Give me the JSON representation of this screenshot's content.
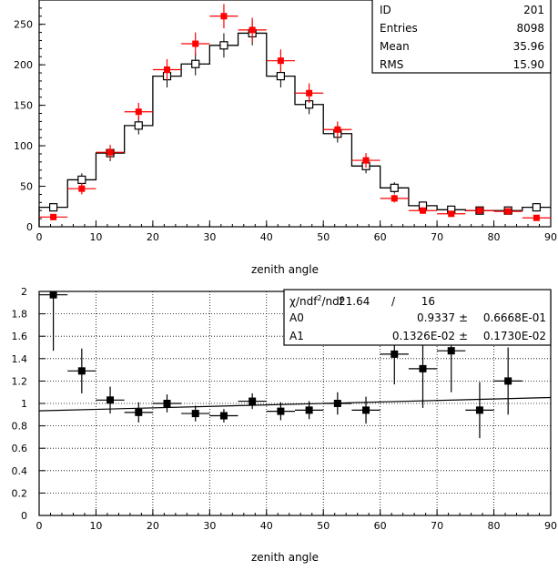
{
  "chart_data": [
    {
      "type": "histogram",
      "xlabel": "zenith angle",
      "ylabel": "",
      "xlim": [
        0,
        90
      ],
      "ylim": [
        0,
        280
      ],
      "xticks": [
        0,
        10,
        20,
        30,
        40,
        50,
        60,
        70,
        80,
        90
      ],
      "yticks": [
        0,
        50,
        100,
        150,
        200,
        250
      ],
      "bin_width": 5,
      "x": [
        2.5,
        7.5,
        12.5,
        17.5,
        22.5,
        27.5,
        32.5,
        37.5,
        42.5,
        47.5,
        52.5,
        57.5,
        62.5,
        67.5,
        72.5,
        77.5,
        82.5,
        87.5
      ],
      "series": [
        {
          "style": "histogram-outline-open-squares",
          "color": "#000000",
          "values": [
            24,
            58,
            91,
            125,
            186,
            201,
            224,
            239,
            186,
            151,
            115,
            75,
            48,
            26,
            21,
            20,
            20,
            24
          ],
          "errors": [
            5,
            8,
            10,
            11,
            14,
            14,
            15,
            15,
            14,
            12,
            11,
            9,
            7,
            5,
            5,
            4,
            4,
            5
          ]
        },
        {
          "style": "red-filled-squares",
          "color": "#ff0000",
          "values": [
            12,
            47,
            92,
            142,
            194,
            226,
            260,
            243,
            205,
            165,
            120,
            82,
            35,
            20,
            16,
            20,
            19,
            11
          ],
          "errors": [
            3,
            7,
            9,
            11,
            13,
            14,
            15,
            15,
            14,
            12,
            10,
            9,
            5,
            4,
            3,
            4,
            4,
            3
          ]
        }
      ],
      "stats_box": [
        {
          "label": "ID",
          "value": "201"
        },
        {
          "label": "Entries",
          "value": "8098"
        },
        {
          "label": "Mean",
          "value": "35.96"
        },
        {
          "label": "RMS",
          "value": "15.90"
        }
      ]
    },
    {
      "type": "scatter",
      "xlabel": "zenith angle",
      "ylabel": "",
      "xlim": [
        0,
        90
      ],
      "ylim": [
        0,
        2
      ],
      "xticks": [
        0,
        10,
        20,
        30,
        40,
        50,
        60,
        70,
        80,
        90
      ],
      "yticks": [
        0,
        0.2,
        0.4,
        0.6,
        0.8,
        1,
        1.2,
        1.4,
        1.6,
        1.8,
        2
      ],
      "ytick_labels": [
        "0",
        "0.2",
        "0.4",
        "0.6",
        "0.8",
        "1",
        "1.2",
        "1.4",
        "1.6",
        "1.8",
        "2"
      ],
      "grid": true,
      "bin_half_width": 2.5,
      "x": [
        2.5,
        7.5,
        12.5,
        17.5,
        22.5,
        27.5,
        32.5,
        37.5,
        42.5,
        47.5,
        52.5,
        57.5,
        62.5,
        67.5,
        72.5,
        77.5,
        82.5
      ],
      "values": [
        1.97,
        1.29,
        1.03,
        0.92,
        1.0,
        0.91,
        0.89,
        1.02,
        0.93,
        0.94,
        1.0,
        0.94,
        1.44,
        1.31,
        1.47,
        0.94,
        1.2
      ],
      "errors": [
        0.5,
        0.2,
        0.12,
        0.09,
        0.08,
        0.07,
        0.06,
        0.07,
        0.08,
        0.08,
        0.1,
        0.12,
        0.27,
        0.35,
        0.37,
        0.25,
        0.3
      ],
      "fit_line": {
        "A0": 0.9337,
        "A1": 0.001326,
        "x_range": [
          0,
          90
        ]
      },
      "fit_box": {
        "header": [
          "χ²/ndf",
          "21.64",
          "/",
          "16"
        ],
        "rows": [
          {
            "label": "A0",
            "value": "0.9337",
            "pm": "±",
            "error": "0.6668E-01"
          },
          {
            "label": "A1",
            "value": "0.1326E-02",
            "pm": "±",
            "error": "0.1730E-02"
          }
        ]
      }
    }
  ]
}
